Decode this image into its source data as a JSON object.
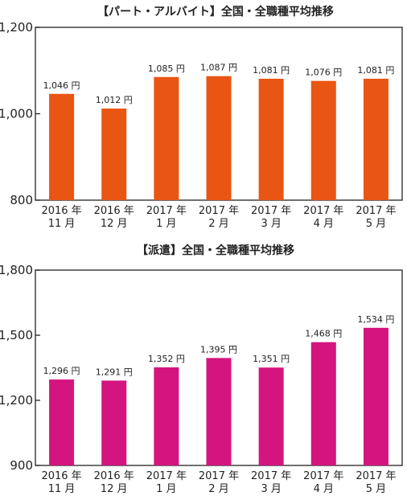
{
  "chart_data": [
    {
      "type": "bar",
      "title": "【パート・アルバイト】全国・全職種平均推移",
      "categories": [
        [
          "2016 年",
          "11 月"
        ],
        [
          "2016 年",
          "12 月"
        ],
        [
          "2017 年",
          "1 月"
        ],
        [
          "2017 年",
          "2 月"
        ],
        [
          "2017 年",
          "3 月"
        ],
        [
          "2017 年",
          "4 月"
        ],
        [
          "2017 年",
          "5 月"
        ]
      ],
      "values": [
        1046,
        1012,
        1085,
        1087,
        1081,
        1076,
        1081
      ],
      "data_labels": [
        "1,046 円",
        "1,012 円",
        "1,085 円",
        "1,087 円",
        "1,081 円",
        "1,076 円",
        "1,081 円"
      ],
      "ylim": [
        800,
        1200
      ],
      "y_ticks": [
        800,
        1000,
        1200
      ],
      "y_tick_labels": [
        "800",
        "1,000",
        "1,200"
      ],
      "color": "#e95513",
      "grid": false
    },
    {
      "type": "bar",
      "title": "【派遣】全国・全職種平均推移",
      "categories": [
        [
          "2016 年",
          "11 月"
        ],
        [
          "2016 年",
          "12 月"
        ],
        [
          "2017 年",
          "1 月"
        ],
        [
          "2017 年",
          "2 月"
        ],
        [
          "2017 年",
          "3 月"
        ],
        [
          "2017 年",
          "4 月"
        ],
        [
          "2017 年",
          "5 月"
        ]
      ],
      "values": [
        1296,
        1291,
        1352,
        1395,
        1351,
        1468,
        1534
      ],
      "data_labels": [
        "1,296 円",
        "1,291 円",
        "1,352 円",
        "1,395 円",
        "1,351 円",
        "1,468 円",
        "1,534 円"
      ],
      "ylim": [
        900,
        1800
      ],
      "y_ticks": [
        900,
        1200,
        1500,
        1800
      ],
      "y_tick_labels": [
        "900",
        "1,200",
        "1,500",
        "1,800"
      ],
      "color": "#d4157f",
      "grid": false
    }
  ]
}
